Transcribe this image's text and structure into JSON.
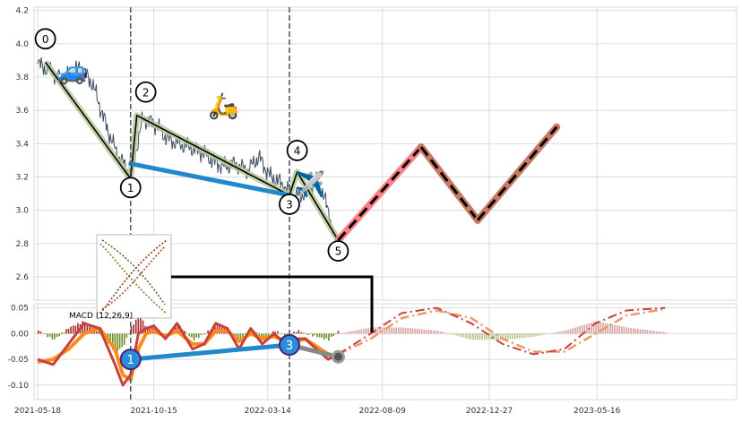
{
  "chart_data": [
    {
      "type": "line",
      "panel": "price",
      "ylim": [
        2.46,
        4.22
      ],
      "y_ticks": [
        "2.6",
        "2.8",
        "3.0",
        "3.2",
        "3.4",
        "3.6",
        "3.8",
        "4.0",
        "4.2"
      ],
      "y_tick_values": [
        2.6,
        2.8,
        3.0,
        3.2,
        3.4,
        3.6,
        3.8,
        4.0,
        4.2
      ],
      "grid": true,
      "price_series": {
        "x_days": [
          0,
          10,
          20,
          30,
          40,
          55,
          70,
          80,
          90,
          100,
          110,
          120,
          135,
          150,
          165,
          180,
          195,
          210,
          225,
          240,
          255,
          270,
          285,
          300,
          315,
          330,
          345,
          360,
          375,
          380
        ],
        "values": [
          3.88,
          3.85,
          3.82,
          3.79,
          3.82,
          3.86,
          3.76,
          3.62,
          3.48,
          3.36,
          3.28,
          3.22,
          3.55,
          3.52,
          3.44,
          3.4,
          3.38,
          3.35,
          3.3,
          3.26,
          3.28,
          3.24,
          3.32,
          3.2,
          3.16,
          3.08,
          3.1,
          3.18,
          3.0,
          2.88
        ]
      },
      "wave_points": [
        {
          "label": "0",
          "day": 10,
          "value": 3.89
        },
        {
          "label": "1",
          "day": 120,
          "value": 3.19
        },
        {
          "label": "2",
          "day": 128,
          "value": 3.57
        },
        {
          "label": "3",
          "day": 325,
          "value": 3.09
        },
        {
          "label": "4",
          "day": 335,
          "value": 3.23
        },
        {
          "label": "5",
          "day": 388,
          "value": 2.82
        }
      ],
      "projection": {
        "days": [
          388,
          495,
          568,
          670
        ],
        "values": [
          2.82,
          3.38,
          2.94,
          3.5
        ],
        "segment_colors": [
          "#ff7f87",
          "#c87965",
          "#c87965"
        ]
      },
      "divergence_line": {
        "from_day": 120,
        "from_value": 3.28,
        "to_day": 325,
        "to_value": 3.09,
        "color": "#2288cc"
      },
      "vlines_days": [
        120,
        325
      ],
      "icons": [
        {
          "name": "car-icon",
          "glyph": "🚙",
          "day": 45,
          "value": 3.84
        },
        {
          "name": "scooter-icon",
          "glyph": "🛵",
          "day": 240,
          "value": 3.63
        },
        {
          "name": "airplane-icon",
          "glyph": "✈️",
          "day": 352,
          "value": 3.16
        }
      ]
    },
    {
      "type": "line",
      "panel": "macd",
      "title": "MACD (12,26,9)",
      "ylim": [
        -0.128,
        0.058
      ],
      "y_ticks": [
        "0.05",
        "0.00",
        "-0.05",
        "-0.10"
      ],
      "y_tick_values": [
        0.05,
        0.0,
        -0.05,
        -0.1
      ],
      "x_tick_labels": [
        "2021-05-18",
        "2021-10-15",
        "2022-03-14",
        "2022-08-09",
        "2022-12-27",
        "2023-05-16"
      ],
      "x_tick_days": [
        0,
        150,
        297,
        445,
        583,
        722
      ],
      "macd_line": {
        "days": [
          0,
          20,
          40,
          60,
          80,
          100,
          110,
          120,
          130,
          140,
          150,
          165,
          180,
          200,
          215,
          230,
          245,
          260,
          275,
          290,
          305,
          320,
          335,
          345,
          360,
          375,
          388
        ],
        "values": [
          -0.05,
          -0.06,
          -0.02,
          0.02,
          0.01,
          -0.06,
          -0.1,
          -0.08,
          0.0,
          0.01,
          0.015,
          -0.01,
          0.02,
          -0.03,
          -0.02,
          0.02,
          0.01,
          -0.03,
          0.01,
          -0.02,
          0.0,
          -0.02,
          -0.01,
          -0.01,
          -0.03,
          -0.05,
          -0.04
        ]
      },
      "signal_line": {
        "days": [
          0,
          20,
          40,
          60,
          80,
          100,
          110,
          120,
          130,
          140,
          150,
          165,
          180,
          200,
          215,
          230,
          245,
          260,
          275,
          290,
          305,
          320,
          335,
          345,
          360,
          375,
          388
        ],
        "values": [
          -0.055,
          -0.05,
          -0.03,
          0.0,
          0.01,
          -0.03,
          -0.08,
          -0.09,
          -0.03,
          0.0,
          0.005,
          -0.005,
          0.005,
          -0.02,
          -0.02,
          0.005,
          0.005,
          -0.015,
          0.0,
          -0.01,
          -0.005,
          -0.015,
          -0.015,
          -0.01,
          -0.025,
          -0.04,
          -0.045
        ]
      },
      "projection_macd": {
        "days": [
          388,
          430,
          470,
          515,
          560,
          600,
          640,
          680,
          720,
          760,
          810
        ],
        "values": [
          -0.04,
          0.0,
          0.04,
          0.05,
          0.02,
          -0.02,
          -0.04,
          -0.03,
          0.02,
          0.045,
          0.05
        ]
      },
      "projection_signal": {
        "days": [
          388,
          430,
          470,
          515,
          560,
          600,
          640,
          680,
          720,
          760,
          810
        ],
        "values": [
          -0.04,
          -0.01,
          0.03,
          0.045,
          0.03,
          -0.01,
          -0.035,
          -0.035,
          0.0,
          0.035,
          0.048
        ]
      },
      "divergence_points": [
        {
          "label": "1",
          "day": 120,
          "value": -0.05
        },
        {
          "label": "3",
          "day": 325,
          "value": -0.022
        }
      ],
      "end_marker": {
        "day": 388,
        "value": -0.045
      }
    }
  ]
}
